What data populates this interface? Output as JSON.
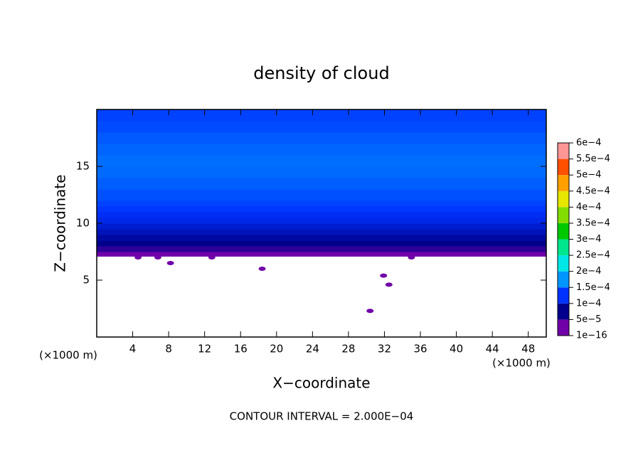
{
  "chart_data": {
    "type": "contour",
    "title": "density of cloud",
    "x_label": "X−coordinate",
    "y_label": "Z−coordinate",
    "x_unit": "(×1000 m)",
    "y_unit": "(×1000 m)",
    "footnote": "CONTOUR INTERVAL = 2.000E−04",
    "xlim": [
      0,
      50
    ],
    "ylim": [
      0,
      20
    ],
    "xticks": [
      4,
      8,
      12,
      16,
      20,
      24,
      28,
      32,
      36,
      40,
      44,
      48
    ],
    "yticks": [
      5,
      10,
      15
    ],
    "z": [
      7.1,
      7.5,
      8,
      8.5,
      9,
      9.5,
      10,
      10.5,
      11,
      11.5,
      12,
      13,
      14,
      15,
      16,
      17,
      18,
      19
    ],
    "values": [
      1e-16,
      3e-05,
      5e-05,
      6e-05,
      7e-05,
      8e-05,
      9e-05,
      9.5e-05,
      0.000102,
      0.000108,
      0.000115,
      0.000122,
      0.000128,
      0.00013,
      0.000125,
      0.00012,
      0.000112,
      0.000108
    ],
    "patches": {
      "x": [
        6.8,
        12.8,
        4.6,
        8.2,
        18.4,
        31.9,
        32.5,
        30.4,
        35.0
      ],
      "z": [
        7.0,
        7.0,
        7.0,
        6.5,
        6.0,
        5.4,
        4.6,
        2.3,
        7.0
      ],
      "values": [
        1e-16,
        1e-16,
        1e-16,
        1e-16,
        1e-16,
        1e-16,
        1e-16,
        1e-16,
        1e-16
      ]
    },
    "colorbar": {
      "ticks": [
        {
          "value": 1e-16,
          "label": "1e−16"
        },
        {
          "value": 5e-05,
          "label": "5e−5"
        },
        {
          "value": 0.0001,
          "label": "1e−4"
        },
        {
          "value": 0.00015,
          "label": "1.5e−4"
        },
        {
          "value": 0.0002,
          "label": "2e−4"
        },
        {
          "value": 0.00025,
          "label": "2.5e−4"
        },
        {
          "value": 0.0003,
          "label": "3e−4"
        },
        {
          "value": 0.00035,
          "label": "3.5e−4"
        },
        {
          "value": 0.0004,
          "label": "4e−4"
        },
        {
          "value": 0.00045,
          "label": "4.5e−4"
        },
        {
          "value": 0.0005,
          "label": "5e−4"
        },
        {
          "value": 0.00055,
          "label": "5.5e−4"
        },
        {
          "value": 0.0006,
          "label": "6e−4"
        }
      ],
      "colors": [
        "#7000a8",
        "#00008c",
        "#0032ff",
        "#0096ff",
        "#00e6e6",
        "#00e68c",
        "#00c800",
        "#82dc00",
        "#e6e600",
        "#ffa000",
        "#ff5000",
        "#ff1e1e",
        "#ff9696"
      ]
    }
  }
}
